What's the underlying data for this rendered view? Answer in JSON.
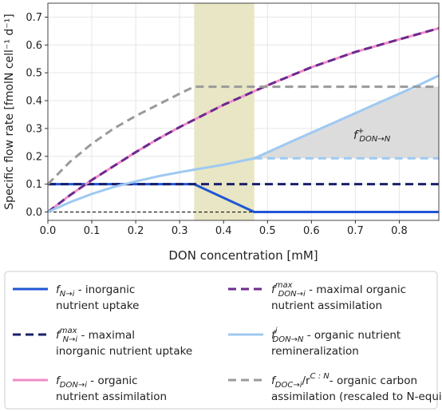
{
  "chart_data": {
    "type": "line",
    "xlabel": "DON concentration [mM]",
    "ylabel": "Specific flow rate [fmolN cell⁻¹ d⁻¹]",
    "xlim": [
      0,
      0.89
    ],
    "ylim": [
      -0.03,
      0.75
    ],
    "xticks": [
      "0.0",
      "0.1",
      "0.2",
      "0.3",
      "0.4",
      "0.5",
      "0.6",
      "0.7",
      "0.8"
    ],
    "yticks": [
      "0.0",
      "0.1",
      "0.2",
      "0.3",
      "0.4",
      "0.5",
      "0.6",
      "0.7"
    ],
    "grid": true,
    "highlight_band": {
      "x": [
        0.333,
        0.47
      ],
      "color": "#e8e6c4"
    },
    "shaded_region": {
      "label": "f⁺ DON→N",
      "upper_x": [
        0.47,
        0.55,
        0.6,
        0.65,
        0.7,
        0.75,
        0.8,
        0.85,
        0.89
      ],
      "upper_y": [
        0.193,
        0.25,
        0.285,
        0.32,
        0.355,
        0.39,
        0.425,
        0.45,
        0.45
      ],
      "lower_y": 0.193,
      "color": "#dcdcdc"
    },
    "series": [
      {
        "key": "n_uptake",
        "color": "#1f56d4",
        "dash": "",
        "width": 3,
        "x": [
          0,
          0.333,
          0.47,
          0.89
        ],
        "y": [
          0.1,
          0.1,
          0.0,
          0.0
        ]
      },
      {
        "key": "n_uptake_max",
        "color": "#1a1f6a",
        "dash": "10,6",
        "width": 3,
        "x": [
          0,
          0.89
        ],
        "y": [
          0.1,
          0.1
        ]
      },
      {
        "key": "zero_ref",
        "color": "#111111",
        "dash": "4,3",
        "width": 1.2,
        "x": [
          0,
          0.47
        ],
        "y": [
          0.0,
          0.0
        ]
      },
      {
        "key": "don_assim",
        "color": "#f08cc8",
        "dash": "",
        "width": 3,
        "x": [
          0,
          0.05,
          0.1,
          0.15,
          0.2,
          0.25,
          0.3,
          0.35,
          0.4,
          0.45,
          0.5,
          0.6,
          0.7,
          0.8,
          0.89
        ],
        "y": [
          0,
          0.06,
          0.115,
          0.165,
          0.215,
          0.262,
          0.305,
          0.345,
          0.385,
          0.42,
          0.455,
          0.52,
          0.575,
          0.62,
          0.66
        ]
      },
      {
        "key": "don_assim_max",
        "color": "#6b2a8f",
        "dash": "10,6",
        "width": 3,
        "x": [
          0,
          0.05,
          0.1,
          0.15,
          0.2,
          0.25,
          0.3,
          0.35,
          0.4,
          0.45,
          0.5,
          0.6,
          0.7,
          0.8,
          0.89
        ],
        "y": [
          0,
          0.06,
          0.115,
          0.165,
          0.215,
          0.262,
          0.305,
          0.345,
          0.385,
          0.42,
          0.455,
          0.52,
          0.575,
          0.62,
          0.66
        ]
      },
      {
        "key": "remin",
        "color": "#9ec9f2",
        "dash": "",
        "width": 3,
        "x": [
          0,
          0.05,
          0.1,
          0.15,
          0.2,
          0.25,
          0.3,
          0.333,
          0.4,
          0.47,
          0.55,
          0.6,
          0.65,
          0.7,
          0.75,
          0.8,
          0.85,
          0.89
        ],
        "y": [
          0,
          0.035,
          0.065,
          0.09,
          0.11,
          0.128,
          0.143,
          0.152,
          0.17,
          0.193,
          0.25,
          0.285,
          0.32,
          0.355,
          0.39,
          0.425,
          0.46,
          0.49
        ]
      },
      {
        "key": "remin_flat",
        "color": "#9ec9f2",
        "dash": "10,6",
        "width": 3,
        "x": [
          0.47,
          0.89
        ],
        "y": [
          0.193,
          0.193
        ]
      },
      {
        "key": "doc_assim",
        "color": "#9a9a9a",
        "dash": "10,6",
        "width": 3,
        "x": [
          0,
          0.05,
          0.1,
          0.15,
          0.2,
          0.25,
          0.3,
          0.333,
          0.89
        ],
        "y": [
          0.1,
          0.18,
          0.245,
          0.3,
          0.345,
          0.385,
          0.425,
          0.45,
          0.45
        ]
      }
    ],
    "legend": [
      {
        "sym": "f",
        "sub": "N→i",
        "sup": "",
        "tail": " - inorganic",
        "line2": "nutrient uptake",
        "color": "#1f56d4",
        "dash": ""
      },
      {
        "sym": "f",
        "sub": "DON→i",
        "sup": "max",
        "tail": " - maximal organic",
        "line2": "nutrient assimilation",
        "color": "#6b2a8f",
        "dash": "10,6"
      },
      {
        "sym": "f",
        "sub": "N→i",
        "sup": "max",
        "tail": " - maximal",
        "line2": "inorganic nutrient uptake",
        "color": "#1a1f6a",
        "dash": "10,6"
      },
      {
        "sym": "f",
        "sub": "DON→N",
        "sup": "i",
        "tail": " - organic nutrient",
        "line2": "remineralization",
        "color": "#9ec9f2",
        "dash": ""
      },
      {
        "sym": "f",
        "sub": "DON→i",
        "sup": "",
        "tail": " - organic",
        "line2": "nutrient assimilation",
        "color": "#f08cc8",
        "dash": ""
      },
      {
        "sym": "f",
        "sub": "DOC→i",
        "sup": "",
        "tail": "/r",
        "tailsup": "C : N",
        "tail2": "- organic carbon",
        "line2": "assimilation (rescaled to N-equiv.)",
        "color": "#9a9a9a",
        "dash": "10,6"
      }
    ]
  }
}
